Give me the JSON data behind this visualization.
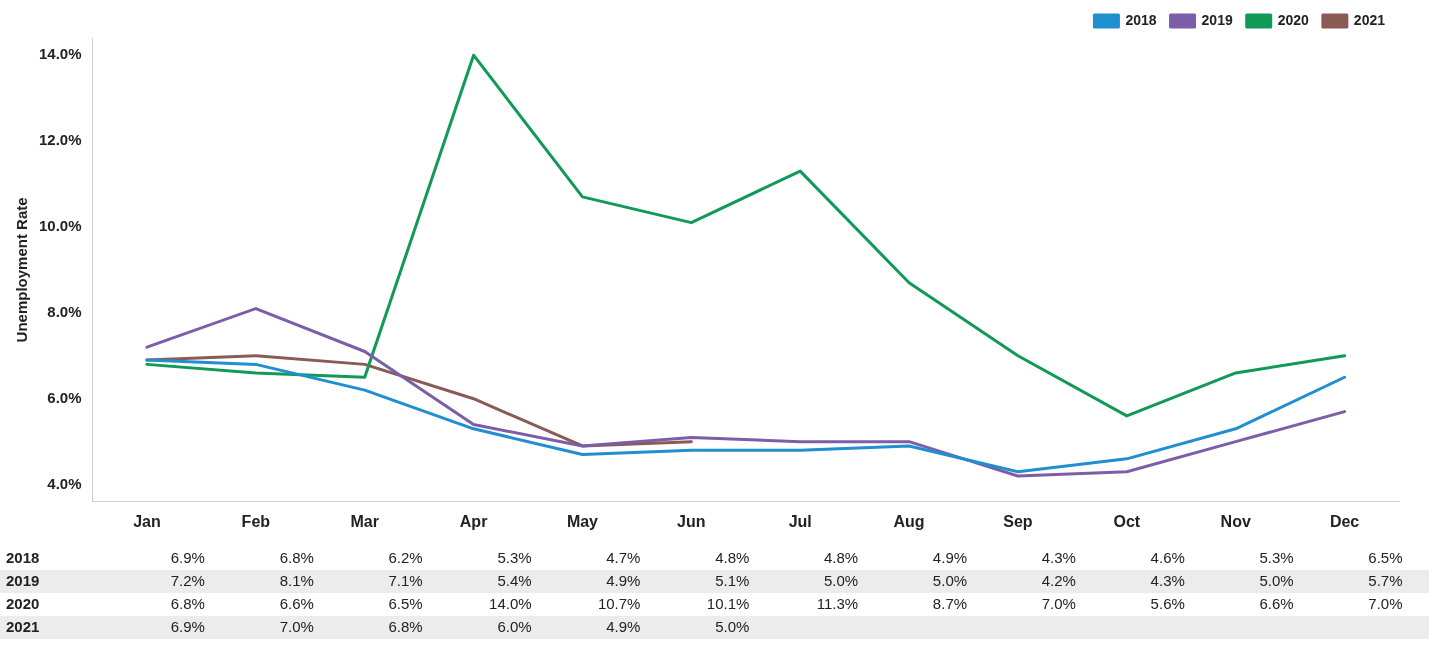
{
  "chart_data": {
    "type": "line",
    "ylabel": "Unemployment Rate",
    "categories": [
      "Jan",
      "Feb",
      "Mar",
      "Apr",
      "May",
      "Jun",
      "Jul",
      "Aug",
      "Sep",
      "Oct",
      "Nov",
      "Dec"
    ],
    "ylim": [
      3.6,
      14.4
    ],
    "yticks": [
      {
        "value": 4,
        "label": "4.0%"
      },
      {
        "value": 6,
        "label": "6.0%"
      },
      {
        "value": 8,
        "label": "8.0%"
      },
      {
        "value": 10,
        "label": "10.0%"
      },
      {
        "value": 12,
        "label": "12.0%"
      },
      {
        "value": 14,
        "label": "14.0%"
      }
    ],
    "grid": false,
    "legend": "top right",
    "marker": "none",
    "line_style": "solid",
    "series": [
      {
        "name": "2018",
        "color": "#1f8fcf",
        "values": [
          6.9,
          6.8,
          6.2,
          5.3,
          4.7,
          4.8,
          4.8,
          4.9,
          4.3,
          4.6,
          5.3,
          6.5
        ],
        "value_labels": [
          "6.9%",
          "6.8%",
          "6.2%",
          "5.3%",
          "4.7%",
          "4.8%",
          "4.8%",
          "4.9%",
          "4.3%",
          "4.6%",
          "5.3%",
          "6.5%"
        ]
      },
      {
        "name": "2019",
        "color": "#7b5ea7",
        "values": [
          7.2,
          8.1,
          7.1,
          5.4,
          4.9,
          5.1,
          5.0,
          5.0,
          4.2,
          4.3,
          5.0,
          5.7
        ],
        "value_labels": [
          "7.2%",
          "8.1%",
          "7.1%",
          "5.4%",
          "4.9%",
          "5.1%",
          "5.0%",
          "5.0%",
          "4.2%",
          "4.3%",
          "5.0%",
          "5.7%"
        ]
      },
      {
        "name": "2020",
        "color": "#119a57",
        "values": [
          6.8,
          6.6,
          6.5,
          14.0,
          10.7,
          10.1,
          11.3,
          8.7,
          7.0,
          5.6,
          6.6,
          7.0
        ],
        "value_labels": [
          "6.8%",
          "6.6%",
          "6.5%",
          "14.0%",
          "10.7%",
          "10.1%",
          "11.3%",
          "8.7%",
          "7.0%",
          "5.6%",
          "6.6%",
          "7.0%"
        ]
      },
      {
        "name": "2021",
        "color": "#8a5a55",
        "values": [
          6.9,
          7.0,
          6.8,
          6.0,
          4.9,
          5.0,
          null,
          null,
          null,
          null,
          null,
          null
        ],
        "value_labels": [
          "6.9%",
          "7.0%",
          "6.8%",
          "6.0%",
          "4.9%",
          "5.0%",
          null,
          null,
          null,
          null,
          null,
          null
        ]
      }
    ]
  }
}
